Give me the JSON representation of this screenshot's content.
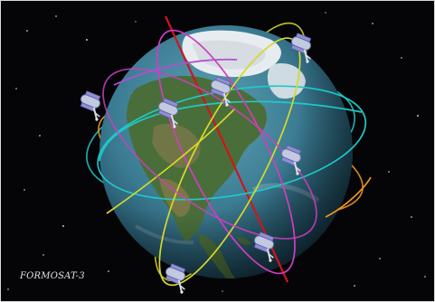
{
  "caption": "FORMOSAT-3",
  "colors": {
    "space": "#050508",
    "ocean": "#3d7f95",
    "land": "#3f6a3a",
    "ice": "#e6ecef",
    "orbit_red": "#d0151d",
    "orbit_cyan": "#1fc9c8",
    "orbit_magenta": "#cf3fbf",
    "orbit_yellow": "#d7d82a",
    "orbit_orange": "#f29a1e",
    "orbit_purple": "#b24fd0",
    "satellite_body": "#bfc7dd",
    "satellite_panel": "#8d8fd8"
  },
  "icons": [
    "earth-globe",
    "satellite-icon"
  ]
}
